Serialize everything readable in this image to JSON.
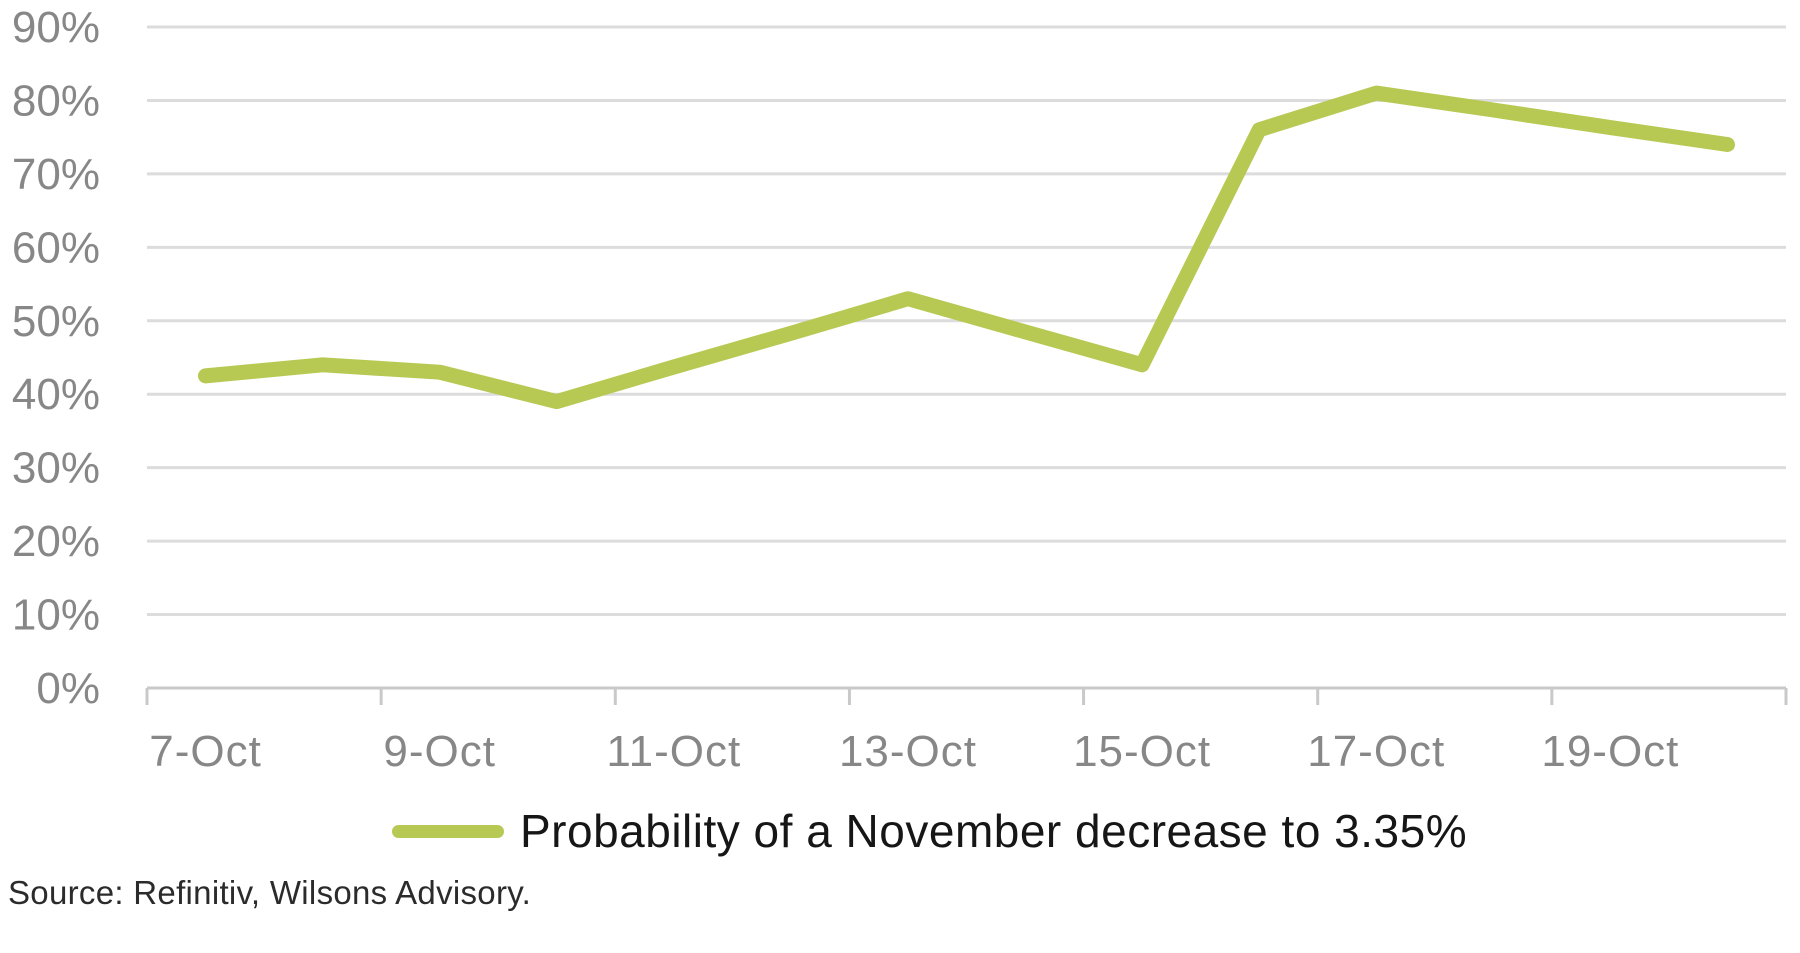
{
  "chart_data": {
    "type": "line",
    "title": "",
    "x": [
      "7-Oct",
      "8-Oct",
      "9-Oct",
      "10-Oct",
      "11-Oct",
      "12-Oct",
      "13-Oct",
      "14-Oct",
      "15-Oct",
      "16-Oct",
      "17-Oct",
      "18-Oct",
      "19-Oct",
      "20-Oct"
    ],
    "series": [
      {
        "name": "Probability of a November decrease to 3.35%",
        "values": [
          42.5,
          44,
          43,
          39,
          43.7,
          48.3,
          53,
          48.5,
          44,
          76,
          81,
          78.7,
          76.3,
          74
        ]
      }
    ],
    "ylim": [
      0,
      90
    ],
    "y_ticks": [
      {
        "value": 0,
        "label": "0%"
      },
      {
        "value": 10,
        "label": "10%"
      },
      {
        "value": 20,
        "label": "20%"
      },
      {
        "value": 30,
        "label": "30%"
      },
      {
        "value": 40,
        "label": "40%"
      },
      {
        "value": 50,
        "label": "50%"
      },
      {
        "value": 60,
        "label": "60%"
      },
      {
        "value": 70,
        "label": "70%"
      },
      {
        "value": 80,
        "label": "80%"
      },
      {
        "value": 90,
        "label": "90%"
      }
    ],
    "x_tick_labels": [
      {
        "day_index": 0,
        "label": "7-Oct"
      },
      {
        "day_index": 2,
        "label": "9-Oct"
      },
      {
        "day_index": 4,
        "label": "11-Oct"
      },
      {
        "day_index": 6,
        "label": "13-Oct"
      },
      {
        "day_index": 8,
        "label": "15-Oct"
      },
      {
        "day_index": 10,
        "label": "17-Oct"
      },
      {
        "day_index": 12,
        "label": "19-Oct"
      }
    ],
    "grid": "horizontal",
    "legend_position": "bottom-center",
    "colors": {
      "line": "#b7c952",
      "gridline": "#dcdcdc",
      "axis": "#c9c9c9",
      "tick_label": "#878787",
      "legend_text": "#161616",
      "source_text": "#2b2b2b"
    }
  },
  "legend": {
    "label": "Probability of a November decrease to 3.35%"
  },
  "source": {
    "text": "Source: Refinitiv, Wilsons Advisory."
  }
}
